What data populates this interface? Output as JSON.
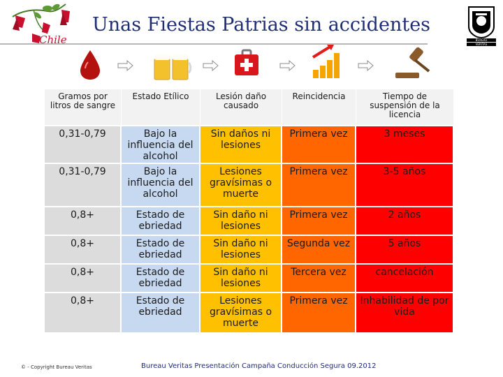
{
  "header": {
    "title": "Unas Fiestas Patrias sin accidentes",
    "logo_text": "Chile",
    "bv_logo_text": [
      "BUREAU",
      "VERITAS"
    ]
  },
  "icons": [
    "blood-drop-icon",
    "beer-mugs-icon",
    "first-aid-kit-icon",
    "rising-bars-icon",
    "judge-gavel-icon"
  ],
  "table": {
    "headers": [
      "Gramos por litros de sangre",
      "Estado Etílico",
      "Lesión daño causado",
      "Reincidencia",
      "Tiempo de suspensión de la licencia"
    ],
    "rows": [
      [
        "0,31-0,79",
        "Bajo la influencia del alcohol",
        "Sin daños ni lesiones",
        "Primera vez",
        "3 meses"
      ],
      [
        "0,31-0,79",
        "Bajo la influencia del alcohol",
        "Lesiones gravísimas o muerte",
        "Primera vez",
        "3-5 años"
      ],
      [
        "0,8+",
        "Estado de ebriedad",
        "Sin daño ni lesiones",
        "Primera vez",
        "2 años"
      ],
      [
        "0,8+",
        "Estado de ebriedad",
        "Sin daño ni lesiones",
        "Segunda vez",
        "5 años"
      ],
      [
        "0,8+",
        "Estado de ebriedad",
        "Sin daño ni lesiones",
        "Tercera vez",
        "cancelación"
      ],
      [
        "0,8+",
        "Estado de ebriedad",
        "Lesiones gravísimas o muerte",
        "Primera vez",
        "Inhabilidad de por vida"
      ]
    ],
    "column_colors": [
      "#dcdcdc",
      "#c6d9f1",
      "#ffc000",
      "#ff6600",
      "#ff0000"
    ]
  },
  "footer": {
    "copyright": "© - Copyright Bureau Veritas",
    "presentation": "Bureau Veritas Presentación Campaña Conducción Segura 09.2012"
  }
}
